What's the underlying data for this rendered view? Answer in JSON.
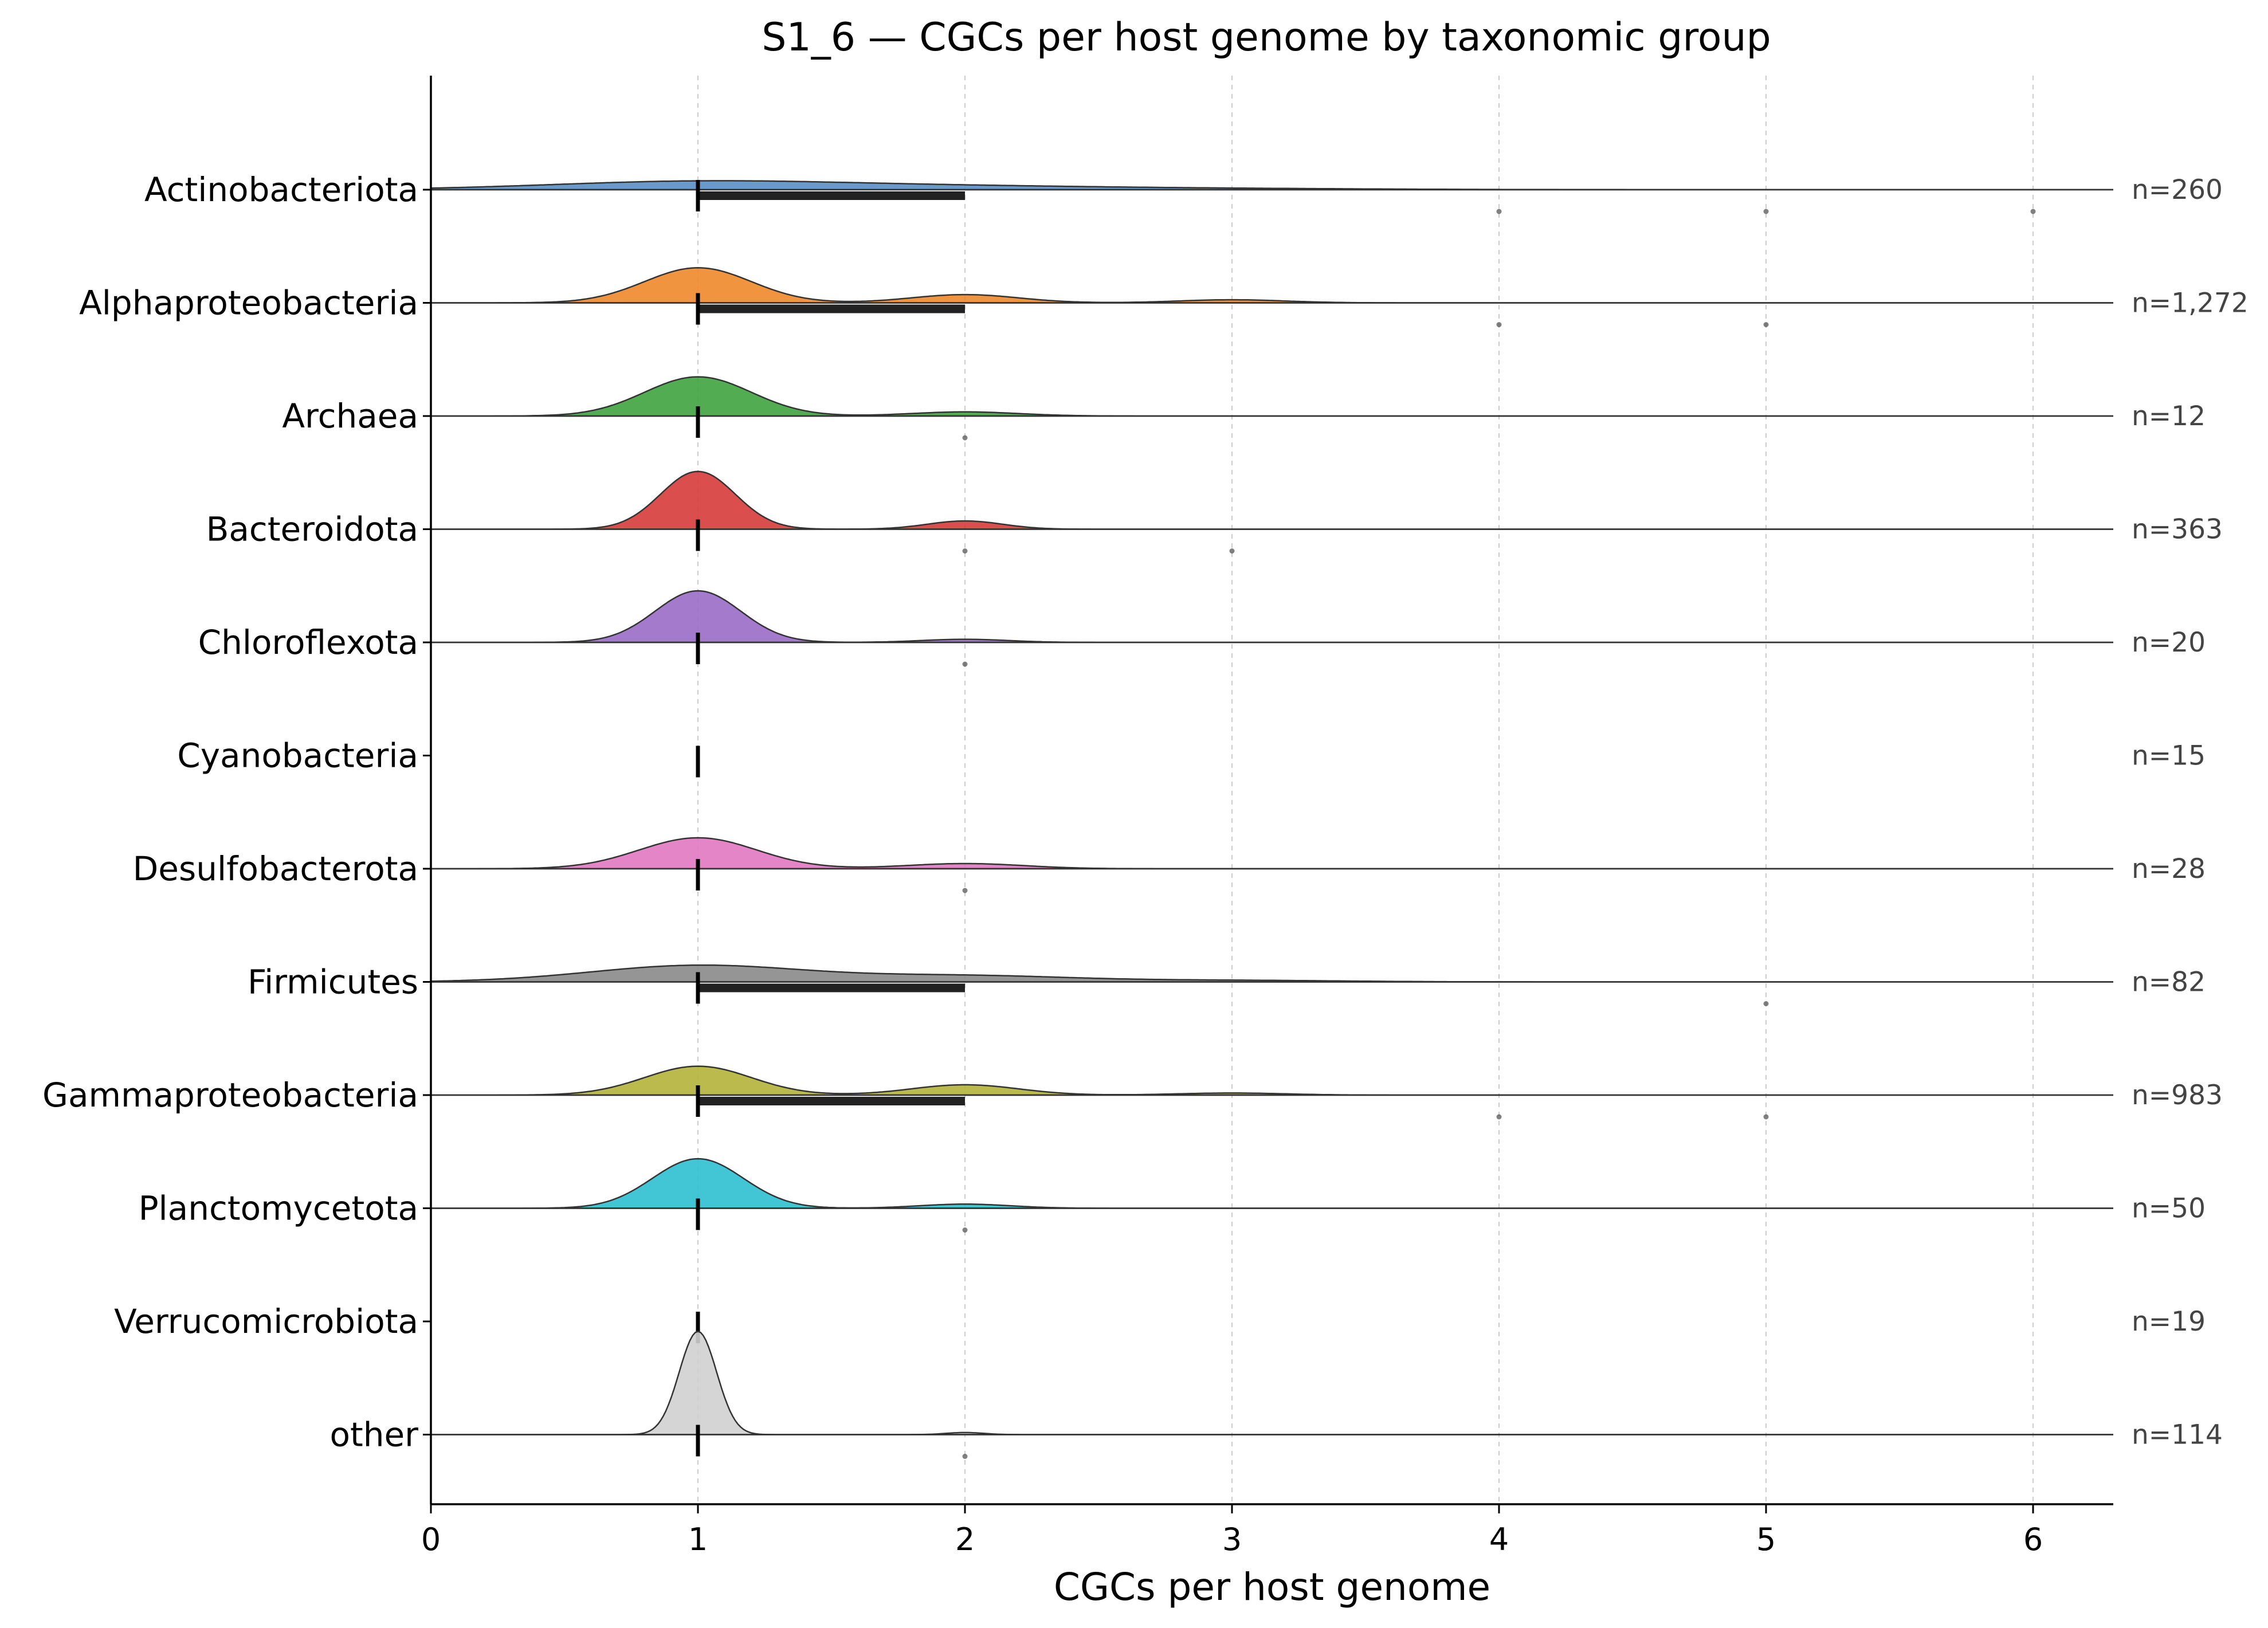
{
  "chart_data": {
    "type": "ridgeline",
    "title": "S1_6 — CGCs per host genome by taxonomic group",
    "xlabel": "CGCs per host genome",
    "ylabel": "",
    "xlim": [
      0,
      6.3
    ],
    "x_ticks": [
      0,
      1,
      2,
      3,
      4,
      5,
      6
    ],
    "grid": "vertical dashed",
    "groups": [
      {
        "name": "Actinobacteriota",
        "n_label": "n=260",
        "color": "#5a8fc6",
        "median": 1,
        "iqr": [
          1,
          2
        ],
        "density_peaks": [
          [
            1,
            0.08
          ],
          [
            2,
            0.03
          ],
          [
            3,
            0.01
          ]
        ],
        "bw": 0.55,
        "outliers": [
          4,
          5,
          6
        ]
      },
      {
        "name": "Alphaproteobacteria",
        "n_label": "n=1,272",
        "color": "#f0882a",
        "median": 1,
        "iqr": [
          1,
          2
        ],
        "density_peaks": [
          [
            1,
            0.34
          ],
          [
            2,
            0.08
          ],
          [
            3,
            0.03
          ]
        ],
        "bw": 0.2,
        "outliers": [
          4,
          5
        ]
      },
      {
        "name": "Archaea",
        "n_label": "n=12",
        "color": "#3fa33f",
        "median": 1,
        "iqr": [
          1,
          1
        ],
        "density_peaks": [
          [
            1,
            0.38
          ],
          [
            2,
            0.04
          ]
        ],
        "bw": 0.2,
        "outliers": [
          2
        ]
      },
      {
        "name": "Bacteroidota",
        "n_label": "n=363",
        "color": "#d63b3b",
        "median": 1,
        "iqr": [
          1,
          1
        ],
        "density_peaks": [
          [
            1,
            0.56
          ],
          [
            2,
            0.08
          ]
        ],
        "bw": 0.14,
        "outliers": [
          2,
          3
        ]
      },
      {
        "name": "Chloroflexota",
        "n_label": "n=20",
        "color": "#9a6bc6",
        "median": 1,
        "iqr": [
          1,
          1
        ],
        "density_peaks": [
          [
            1,
            0.5
          ],
          [
            2,
            0.03
          ]
        ],
        "bw": 0.16,
        "outliers": [
          2
        ]
      },
      {
        "name": "Cyanobacteria",
        "n_label": "n=15",
        "color": "#8c5a4a",
        "median": 1,
        "iqr": [
          1,
          1
        ],
        "density_peaks": [],
        "bw": 0.2,
        "outliers": []
      },
      {
        "name": "Desulfobacterota",
        "n_label": "n=28",
        "color": "#e078c0",
        "median": 1,
        "iqr": [
          1,
          1
        ],
        "density_peaks": [
          [
            1,
            0.3
          ],
          [
            2,
            0.05
          ]
        ],
        "bw": 0.22,
        "outliers": [
          2
        ]
      },
      {
        "name": "Firmicutes",
        "n_label": "n=82",
        "color": "#8a8a8a",
        "median": 1,
        "iqr": [
          1,
          2
        ],
        "density_peaks": [
          [
            1,
            0.16
          ],
          [
            2,
            0.06
          ],
          [
            3,
            0.015
          ]
        ],
        "bw": 0.4,
        "outliers": [
          5
        ]
      },
      {
        "name": "Gammaproteobacteria",
        "n_label": "n=983",
        "color": "#b3b23a",
        "median": 1,
        "iqr": [
          1,
          2
        ],
        "density_peaks": [
          [
            1,
            0.28
          ],
          [
            2,
            0.1
          ],
          [
            3,
            0.02
          ]
        ],
        "bw": 0.2,
        "outliers": [
          4,
          5
        ]
      },
      {
        "name": "Planctomycetota",
        "n_label": "n=50",
        "color": "#2dbfd0",
        "median": 1,
        "iqr": [
          1,
          1
        ],
        "density_peaks": [
          [
            1,
            0.48
          ],
          [
            2,
            0.04
          ]
        ],
        "bw": 0.17,
        "outliers": [
          2
        ]
      },
      {
        "name": "Verrucomicrobiota",
        "n_label": "n=19",
        "color": "#2dbfd0",
        "median": 1,
        "iqr": [
          1,
          1
        ],
        "density_peaks": [],
        "bw": 0.2,
        "outliers": []
      },
      {
        "name": "other",
        "n_label": "n=114",
        "color": "#d0d0d0",
        "median": 1,
        "iqr": [
          1,
          1
        ],
        "density_peaks": [
          [
            1,
            1.0
          ],
          [
            2,
            0.02
          ]
        ],
        "bw": 0.07,
        "outliers": [
          2
        ]
      }
    ]
  }
}
